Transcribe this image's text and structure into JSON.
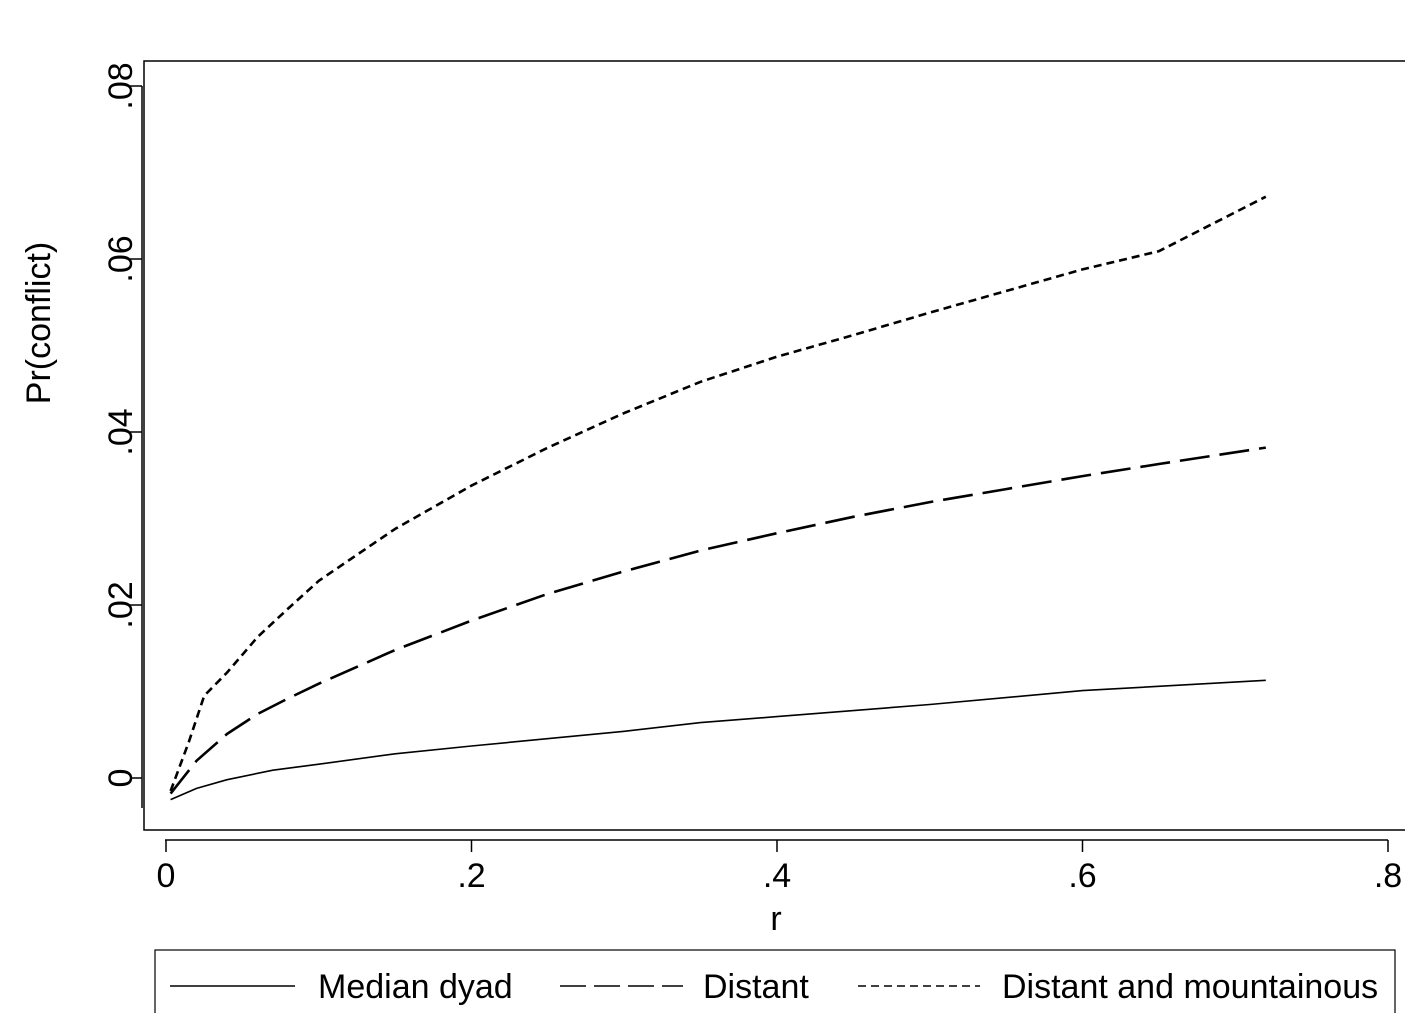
{
  "chart_data": {
    "type": "line",
    "xlabel": "r",
    "ylabel": "Pr(conflict)",
    "xlim": [
      -0.01,
      0.81
    ],
    "ylim": [
      -0.0035,
      0.081
    ],
    "x_ticks": [
      {
        "value": 0,
        "label": "0"
      },
      {
        "value": 0.2,
        "label": ".2"
      },
      {
        "value": 0.4,
        "label": ".4"
      },
      {
        "value": 0.6,
        "label": ".6"
      },
      {
        "value": 0.8,
        "label": ".8"
      }
    ],
    "y_ticks": [
      {
        "value": 0,
        "label": "0"
      },
      {
        "value": 0.02,
        "label": ".02"
      },
      {
        "value": 0.04,
        "label": ".04"
      },
      {
        "value": 0.06,
        "label": ".06"
      },
      {
        "value": 0.08,
        "label": ".08"
      }
    ],
    "grid": false,
    "legend_position": "bottom",
    "series": [
      {
        "name": "Median dyad",
        "style": "solid",
        "x": [
          0.003,
          0.02,
          0.04,
          0.07,
          0.1,
          0.15,
          0.2,
          0.3,
          0.35,
          0.4,
          0.5,
          0.6,
          0.72
        ],
        "y": [
          -0.0025,
          -0.0012,
          -0.0002,
          0.0009,
          0.0016,
          0.0028,
          0.0037,
          0.0054,
          0.0064,
          0.0071,
          0.0085,
          0.0101,
          0.0113
        ]
      },
      {
        "name": "Distant",
        "style": "long-dash",
        "x": [
          0.003,
          0.02,
          0.04,
          0.06,
          0.08,
          0.1,
          0.15,
          0.2,
          0.25,
          0.3,
          0.35,
          0.4,
          0.45,
          0.5,
          0.55,
          0.6,
          0.65,
          0.72
        ],
        "y": [
          -0.0018,
          0.002,
          0.0051,
          0.0074,
          0.0092,
          0.0109,
          0.0148,
          0.0182,
          0.0213,
          0.0239,
          0.0263,
          0.0283,
          0.0302,
          0.0319,
          0.0334,
          0.0349,
          0.0363,
          0.0382
        ]
      },
      {
        "name": "Distant and mountainous",
        "style": "short-dash",
        "x": [
          0.003,
          0.015,
          0.025,
          0.04,
          0.06,
          0.08,
          0.1,
          0.12,
          0.15,
          0.2,
          0.25,
          0.3,
          0.35,
          0.4,
          0.45,
          0.5,
          0.55,
          0.6,
          0.65,
          0.72
        ],
        "y": [
          -0.0015,
          0.0042,
          0.0095,
          0.0122,
          0.0163,
          0.0196,
          0.0228,
          0.0252,
          0.0288,
          0.0338,
          0.0382,
          0.0422,
          0.0458,
          0.0487,
          0.0512,
          0.0538,
          0.0563,
          0.0588,
          0.0609,
          0.0672
        ]
      }
    ]
  }
}
